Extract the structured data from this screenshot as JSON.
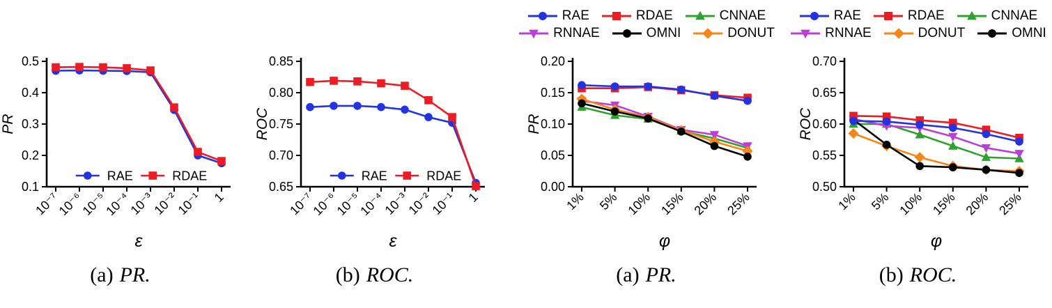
{
  "figure": {
    "background": "#ffffff",
    "panels": [
      "pr-vs-epsilon",
      "roc-vs-epsilon",
      "pr-vs-phi",
      "roc-vs-phi"
    ]
  },
  "colors": {
    "RAE": "#2433E0",
    "RDAE": "#EC1C24",
    "CNNAE": "#2EA12E",
    "RNNAE": "#BB3FD6",
    "OMNI": "#000000",
    "DONUT": "#F58617"
  },
  "chart_data": [
    {
      "type": "line",
      "name": "pr-vs-epsilon",
      "caption": {
        "prefix": "(a)",
        "label": "PR."
      },
      "xlabel": "ε",
      "ylabel": "PR",
      "x_categories": [
        "10⁻⁷",
        "10⁻⁶",
        "10⁻⁵",
        "10⁻⁴",
        "10⁻³",
        "10⁻²",
        "10⁻¹",
        "1"
      ],
      "ylim": [
        0.1,
        0.5
      ],
      "ytick_values": [
        0.1,
        0.2,
        0.3,
        0.4,
        0.5
      ],
      "ytick_labels": [
        "0.1",
        "0.2",
        "0.3",
        "0.4",
        "0.5"
      ],
      "grid": false,
      "legend": {
        "position": "inside-bottom",
        "rows": [
          [
            "RAE",
            "RDAE"
          ]
        ]
      },
      "series": [
        {
          "name": "RAE",
          "color": "#2433E0",
          "marker": "circle",
          "values": [
            0.47,
            0.471,
            0.47,
            0.469,
            0.465,
            0.345,
            0.2,
            0.175
          ]
        },
        {
          "name": "RDAE",
          "color": "#EC1C24",
          "marker": "square",
          "values": [
            0.481,
            0.482,
            0.481,
            0.478,
            0.471,
            0.353,
            0.211,
            0.182
          ]
        }
      ]
    },
    {
      "type": "line",
      "name": "roc-vs-epsilon",
      "caption": {
        "prefix": "(b)",
        "label": "ROC."
      },
      "xlabel": "ε",
      "ylabel": "ROC",
      "x_categories": [
        "10⁻⁷",
        "10⁻⁶",
        "10⁻⁵",
        "10⁻⁴",
        "10⁻³",
        "10⁻²",
        "10⁻¹",
        "1"
      ],
      "ylim": [
        0.65,
        0.85
      ],
      "ytick_values": [
        0.65,
        0.7,
        0.75,
        0.8,
        0.85
      ],
      "ytick_labels": [
        "0.65",
        "0.70",
        "0.75",
        "0.80",
        "0.85"
      ],
      "grid": false,
      "legend": {
        "position": "inside-bottom",
        "rows": [
          [
            "RAE",
            "RDAE"
          ]
        ]
      },
      "series": [
        {
          "name": "RAE",
          "color": "#2433E0",
          "marker": "circle",
          "values": [
            0.777,
            0.779,
            0.779,
            0.777,
            0.773,
            0.761,
            0.752,
            0.656
          ]
        },
        {
          "name": "RDAE",
          "color": "#EC1C24",
          "marker": "square",
          "values": [
            0.817,
            0.819,
            0.818,
            0.815,
            0.811,
            0.788,
            0.761,
            0.651
          ]
        }
      ]
    },
    {
      "type": "line",
      "name": "pr-vs-phi",
      "caption": {
        "prefix": "(a)",
        "label": "PR."
      },
      "xlabel": "φ",
      "ylabel": "PR",
      "x_categories": [
        "1%",
        "5%",
        "10%",
        "15%",
        "20%",
        "25%"
      ],
      "ylim": [
        0.0,
        0.2
      ],
      "ytick_values": [
        0.0,
        0.05,
        0.1,
        0.15,
        0.2
      ],
      "ytick_labels": [
        "0.00",
        "0.05",
        "0.10",
        "0.15",
        "0.20"
      ],
      "grid": false,
      "legend": {
        "position": "top",
        "rows": [
          [
            "RAE",
            "RDAE",
            "CNNAE"
          ],
          [
            "RNNAE",
            "OMNI",
            "DONUT"
          ]
        ]
      },
      "series": [
        {
          "name": "CNNAE",
          "color": "#2EA12E",
          "marker": "triangle-up",
          "values": [
            0.127,
            0.114,
            0.108,
            0.089,
            0.077,
            0.062
          ]
        },
        {
          "name": "RNNAE",
          "color": "#BB3FD6",
          "marker": "triangle-down",
          "values": [
            0.137,
            0.13,
            0.112,
            0.091,
            0.083,
            0.065
          ]
        },
        {
          "name": "DONUT",
          "color": "#F58617",
          "marker": "diamond",
          "values": [
            0.14,
            0.123,
            0.111,
            0.09,
            0.072,
            0.057
          ]
        },
        {
          "name": "OMNI",
          "color": "#000000",
          "marker": "circle",
          "values": [
            0.133,
            0.12,
            0.109,
            0.088,
            0.065,
            0.048
          ]
        },
        {
          "name": "RDAE",
          "color": "#EC1C24",
          "marker": "square",
          "values": [
            0.157,
            0.157,
            0.159,
            0.154,
            0.146,
            0.142
          ]
        },
        {
          "name": "RAE",
          "color": "#2433E0",
          "marker": "circle",
          "values": [
            0.162,
            0.16,
            0.16,
            0.155,
            0.145,
            0.137
          ]
        }
      ]
    },
    {
      "type": "line",
      "name": "roc-vs-phi",
      "caption": {
        "prefix": "(b)",
        "label": "ROC."
      },
      "xlabel": "φ",
      "ylabel": "ROC",
      "x_categories": [
        "1%",
        "5%",
        "10%",
        "15%",
        "20%",
        "25%"
      ],
      "ylim": [
        0.5,
        0.7
      ],
      "ytick_values": [
        0.5,
        0.55,
        0.6,
        0.65,
        0.7
      ],
      "ytick_labels": [
        "0.50",
        "0.55",
        "0.60",
        "0.65",
        "0.70"
      ],
      "grid": false,
      "legend": {
        "position": "top",
        "rows": [
          [
            "RAE",
            "RDAE",
            "CNNAE"
          ],
          [
            "RNNAE",
            "DONUT",
            "OMNI"
          ]
        ]
      },
      "series": [
        {
          "name": "CNNAE",
          "color": "#2EA12E",
          "marker": "triangle-up",
          "values": [
            0.6,
            0.6,
            0.583,
            0.565,
            0.547,
            0.545
          ]
        },
        {
          "name": "RNNAE",
          "color": "#BB3FD6",
          "marker": "triangle-down",
          "values": [
            0.608,
            0.597,
            0.594,
            0.58,
            0.562,
            0.553
          ]
        },
        {
          "name": "DONUT",
          "color": "#F58617",
          "marker": "diamond",
          "values": [
            0.585,
            0.565,
            0.547,
            0.533,
            0.527,
            0.525
          ]
        },
        {
          "name": "OMNI",
          "color": "#000000",
          "marker": "circle",
          "values": [
            0.607,
            0.567,
            0.533,
            0.531,
            0.527,
            0.522
          ]
        },
        {
          "name": "RDAE",
          "color": "#EC1C24",
          "marker": "square",
          "values": [
            0.613,
            0.612,
            0.606,
            0.602,
            0.591,
            0.578
          ]
        },
        {
          "name": "RAE",
          "color": "#2433E0",
          "marker": "circle",
          "values": [
            0.605,
            0.604,
            0.599,
            0.594,
            0.584,
            0.572
          ]
        }
      ]
    }
  ]
}
